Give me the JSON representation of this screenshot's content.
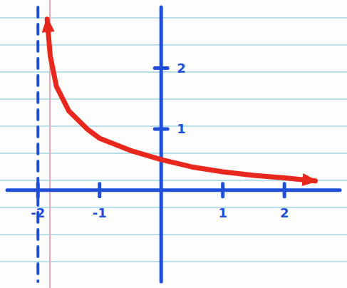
{
  "chart_data": {
    "type": "line",
    "x": [
      -1.85,
      -1.8,
      -1.7,
      -1.5,
      -1.2,
      -1.0,
      -0.5,
      0,
      0.5,
      1.0,
      1.5,
      2.0,
      2.5
    ],
    "series": [
      {
        "color": "#e8281e",
        "values": [
          2.8,
          2.2,
          1.7,
          1.3,
          1.0,
          0.85,
          0.65,
          0.5,
          0.38,
          0.3,
          0.24,
          0.2,
          0.15
        ]
      }
    ],
    "asymptote": -2,
    "xlim": [
      -2.5,
      2.9
    ],
    "ylim": [
      -1.5,
      3.0
    ],
    "xticks": [
      -2,
      -1,
      1,
      2
    ],
    "yticks": [
      1,
      2
    ],
    "color": "#1f4fd6",
    "grid": false
  }
}
